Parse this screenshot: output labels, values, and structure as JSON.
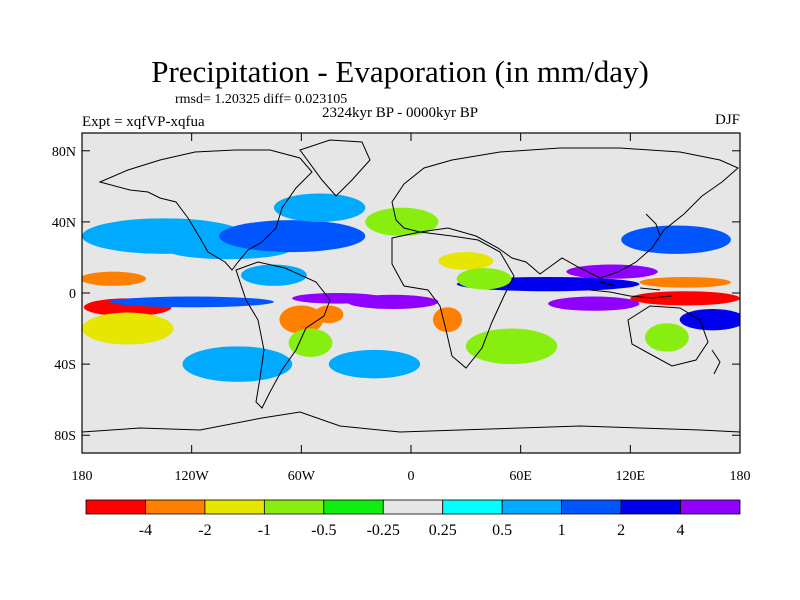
{
  "chart_data": {
    "type": "filled-contour-map",
    "title": "Precipitation - Evaporation (in mm/day)",
    "stats": "rmsd= 1.20325 diff= 0.023105",
    "period": "2324kyr BP - 0000kyr BP",
    "experiment": "Expt = xqfVP-xqfua",
    "season": "DJF",
    "xlim": [
      -180,
      180
    ],
    "ylim": [
      -90,
      90
    ],
    "x_ticks": [
      {
        "value": -180,
        "label": "180"
      },
      {
        "value": -120,
        "label": "120W"
      },
      {
        "value": -60,
        "label": "60W"
      },
      {
        "value": 0,
        "label": "0"
      },
      {
        "value": 60,
        "label": "60E"
      },
      {
        "value": 120,
        "label": "120E"
      },
      {
        "value": 180,
        "label": "180"
      }
    ],
    "y_ticks": [
      {
        "value": 80,
        "label": "80N"
      },
      {
        "value": 40,
        "label": "40N"
      },
      {
        "value": 0,
        "label": "0"
      },
      {
        "value": -40,
        "label": "40S"
      },
      {
        "value": -80,
        "label": "80S"
      }
    ],
    "colorbar": {
      "colors": [
        "#ff0000",
        "#ff8000",
        "#e6e600",
        "#88ee10",
        "#10ee10",
        "#e6e6e6",
        "#00ffff",
        "#00aaff",
        "#0055ff",
        "#0000ee",
        "#9000ff"
      ],
      "boundaries": [
        -4,
        -2,
        -1,
        -0.5,
        -0.25,
        0.25,
        0.5,
        1,
        2,
        4
      ],
      "labels": [
        "-4",
        "-2",
        "-1",
        "-0.5",
        "-0.25",
        "0.25",
        "0.5",
        "1",
        "2",
        "4"
      ]
    },
    "features": [
      {
        "lon": -155,
        "lat": -8,
        "rx": 24,
        "ry": 5,
        "value": -5
      },
      {
        "lon": -163,
        "lat": 8,
        "rx": 18,
        "ry": 4,
        "value": -3
      },
      {
        "lon": -155,
        "lat": -20,
        "rx": 25,
        "ry": 9,
        "value": -1
      },
      {
        "lon": -135,
        "lat": 32,
        "rx": 45,
        "ry": 10,
        "value": 0.75
      },
      {
        "lon": -100,
        "lat": 25,
        "rx": 35,
        "ry": 6,
        "value": 0.75
      },
      {
        "lon": -65,
        "lat": 32,
        "rx": 40,
        "ry": 9,
        "value": 1.5
      },
      {
        "lon": -75,
        "lat": 10,
        "rx": 18,
        "ry": 6,
        "value": 0.75
      },
      {
        "lon": -120,
        "lat": -5,
        "rx": 45,
        "ry": 3,
        "value": 1.5
      },
      {
        "lon": -40,
        "lat": -3,
        "rx": 25,
        "ry": 3,
        "value": 5
      },
      {
        "lon": -60,
        "lat": -15,
        "rx": 12,
        "ry": 8,
        "value": -3
      },
      {
        "lon": -45,
        "lat": -12,
        "rx": 8,
        "ry": 5,
        "value": -3
      },
      {
        "lon": -55,
        "lat": -28,
        "rx": 12,
        "ry": 8,
        "value": -0.75
      },
      {
        "lon": -10,
        "lat": -5,
        "rx": 25,
        "ry": 4,
        "value": 5
      },
      {
        "lon": 20,
        "lat": -15,
        "rx": 8,
        "ry": 7,
        "value": -3
      },
      {
        "lon": 30,
        "lat": 18,
        "rx": 15,
        "ry": 5,
        "value": -1.5
      },
      {
        "lon": 75,
        "lat": 5,
        "rx": 50,
        "ry": 4,
        "value": 3
      },
      {
        "lon": 100,
        "lat": -6,
        "rx": 25,
        "ry": 4,
        "value": 5
      },
      {
        "lon": 110,
        "lat": 12,
        "rx": 25,
        "ry": 4,
        "value": 5
      },
      {
        "lon": 150,
        "lat": -3,
        "rx": 30,
        "ry": 4,
        "value": -5
      },
      {
        "lon": 150,
        "lat": 6,
        "rx": 25,
        "ry": 3,
        "value": -3
      },
      {
        "lon": 165,
        "lat": -15,
        "rx": 18,
        "ry": 6,
        "value": 3
      },
      {
        "lon": 145,
        "lat": 30,
        "rx": 30,
        "ry": 8,
        "value": 1.5
      },
      {
        "lon": 140,
        "lat": -25,
        "rx": 12,
        "ry": 8,
        "value": -0.75
      },
      {
        "lon": 55,
        "lat": -30,
        "rx": 25,
        "ry": 10,
        "value": -0.75
      },
      {
        "lon": -95,
        "lat": -40,
        "rx": 30,
        "ry": 10,
        "value": 0.75
      },
      {
        "lon": -5,
        "lat": 40,
        "rx": 20,
        "ry": 8,
        "value": -0.75
      },
      {
        "lon": -20,
        "lat": -40,
        "rx": 25,
        "ry": 8,
        "value": 0.75
      },
      {
        "lon": -50,
        "lat": 48,
        "rx": 25,
        "ry": 8,
        "value": 0.75
      },
      {
        "lon": 40,
        "lat": 8,
        "rx": 15,
        "ry": 6,
        "value": -0.75
      }
    ]
  }
}
